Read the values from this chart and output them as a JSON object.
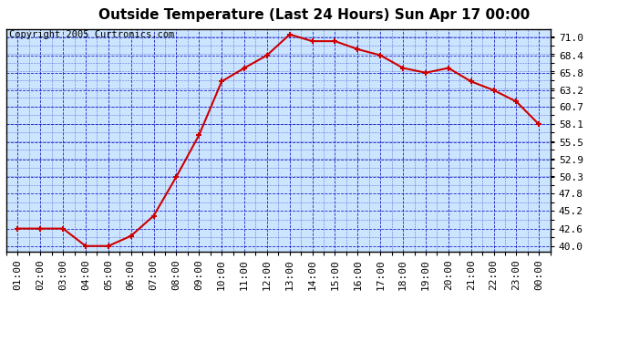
{
  "title": "Outside Temperature (Last 24 Hours) Sun Apr 17 00:00",
  "copyright": "Copyright 2005 Curtronics.com",
  "x_labels": [
    "01:00",
    "02:00",
    "03:00",
    "04:00",
    "05:00",
    "06:00",
    "07:00",
    "08:00",
    "09:00",
    "10:00",
    "11:00",
    "12:00",
    "13:00",
    "14:00",
    "15:00",
    "16:00",
    "17:00",
    "18:00",
    "19:00",
    "20:00",
    "21:00",
    "22:00",
    "23:00",
    "00:00"
  ],
  "y_values": [
    42.6,
    42.6,
    42.6,
    40.0,
    40.0,
    41.5,
    44.5,
    50.3,
    56.5,
    64.5,
    66.5,
    68.4,
    71.5,
    70.5,
    70.5,
    69.3,
    68.4,
    66.5,
    65.8,
    66.5,
    64.5,
    63.2,
    61.5,
    58.1
  ],
  "y_ticks": [
    40.0,
    42.6,
    45.2,
    47.8,
    50.3,
    52.9,
    55.5,
    58.1,
    60.7,
    63.2,
    65.8,
    68.4,
    71.0
  ],
  "ylim": [
    39.2,
    72.3
  ],
  "line_color": "#cc0000",
  "marker_color": "#cc0000",
  "fig_bg_color": "#ffffff",
  "plot_bg": "#cce5ff",
  "grid_color": "#0000bb",
  "border_color": "#000000",
  "title_fontsize": 11,
  "tick_fontsize": 8,
  "copyright_fontsize": 7.5
}
